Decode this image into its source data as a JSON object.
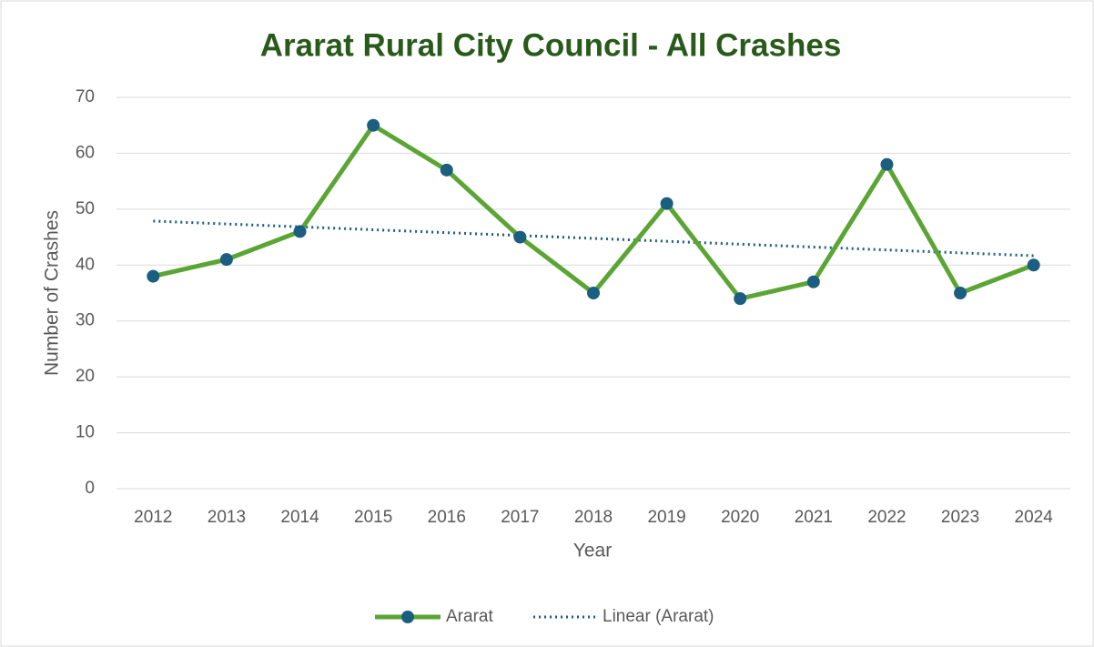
{
  "chart_data": {
    "type": "line",
    "title": "Ararat Rural City Council - All Crashes",
    "x_label": "Year",
    "y_label": "Number of Crashes",
    "categories": [
      "2012",
      "2013",
      "2014",
      "2015",
      "2016",
      "2017",
      "2018",
      "2019",
      "2020",
      "2021",
      "2022",
      "2023",
      "2024"
    ],
    "series": [
      {
        "name": "Ararat",
        "color": "#5ba534",
        "marker_color": "#1b5e80",
        "values": [
          38,
          41,
          46,
          65,
          57,
          45,
          35,
          51,
          34,
          37,
          58,
          35,
          40
        ]
      }
    ],
    "trendline": {
      "type": "linear",
      "name": "Linear (Ararat)",
      "color": "#1b5e80"
    },
    "ylim": [
      0,
      70
    ],
    "yticks": [
      0,
      10,
      20,
      30,
      40,
      50,
      60,
      70
    ],
    "grid": true,
    "legend": "bottom"
  }
}
